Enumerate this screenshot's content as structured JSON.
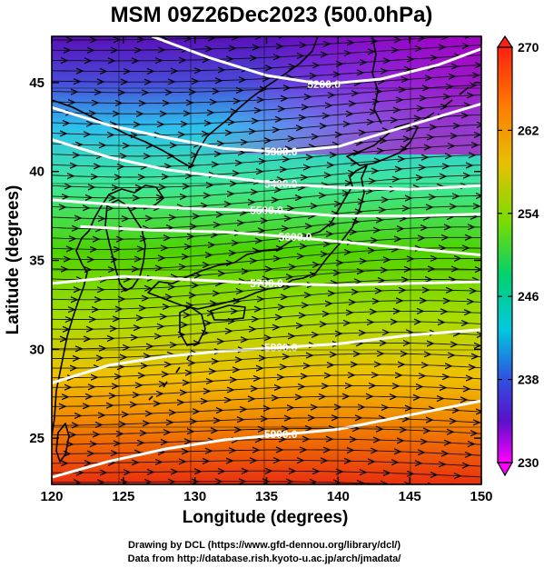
{
  "title": "MSM 09Z26Dec2023 (500.0hPa)",
  "xlabel": "Longitude (degrees)",
  "ylabel": "Latitude  (degrees)",
  "x_ticks": [
    "120",
    "125",
    "130",
    "135",
    "140",
    "145",
    "150"
  ],
  "y_ticks": [
    "25",
    "30",
    "35",
    "40",
    "45"
  ],
  "colorbar": {
    "ticks": [
      "270",
      "262",
      "254",
      "246",
      "238",
      "230"
    ],
    "min": 230,
    "max": 270
  },
  "contour_labels": [
    "5200.0",
    "5300.0",
    "5400.0",
    "5500.0",
    "5600.0",
    "5700.0",
    "5800.0",
    "5900.0"
  ],
  "credits": {
    "line1": "Drawing by DCL (https://www.gfd-dennou.org/library/dcl/)",
    "line2": "Data from http://database.rish.kyoto-u.ac.jp/arch/jmadata/"
  },
  "chart_data": {
    "type": "heatmap",
    "title": "MSM 09Z26Dec2023 (500.0hPa)",
    "xlabel": "Longitude (degrees)",
    "ylabel": "Latitude  (degrees)",
    "xlim": [
      120,
      150
    ],
    "ylim": [
      22.4,
      47.6
    ],
    "color_range": [
      230,
      270
    ],
    "grid": true,
    "contours": [
      {
        "label": "5200.0",
        "points": [
          [
            127,
            47.6
          ],
          [
            131,
            46.4
          ],
          [
            135,
            45.4
          ],
          [
            139,
            44.9
          ],
          [
            143,
            45.2
          ],
          [
            147,
            46.0
          ],
          [
            150,
            46.9
          ]
        ]
      },
      {
        "label": "5300.0",
        "points": [
          [
            120,
            43.6
          ],
          [
            124,
            42.6
          ],
          [
            128,
            41.9
          ],
          [
            132,
            41.3
          ],
          [
            136,
            41.1
          ],
          [
            140,
            41.4
          ],
          [
            145,
            42.6
          ],
          [
            150,
            43.8
          ]
        ]
      },
      {
        "label": "5400.0",
        "points": [
          [
            120,
            41.8
          ],
          [
            124,
            40.8
          ],
          [
            128,
            40.1
          ],
          [
            132,
            39.7
          ],
          [
            136,
            39.3
          ],
          [
            140,
            39.1
          ],
          [
            145,
            39.0
          ],
          [
            150,
            39.2
          ]
        ]
      },
      {
        "label": "5500.0",
        "points": [
          [
            120,
            38.4
          ],
          [
            125,
            38.1
          ],
          [
            130,
            37.9
          ],
          [
            135,
            37.8
          ],
          [
            140,
            37.5
          ],
          [
            145,
            37.5
          ],
          [
            150,
            37.6
          ]
        ]
      },
      {
        "label": "5600.0",
        "points": [
          [
            122,
            36.9
          ],
          [
            127,
            36.7
          ],
          [
            132,
            36.6
          ],
          [
            137,
            36.3
          ],
          [
            142,
            35.9
          ],
          [
            146,
            35.6
          ],
          [
            150,
            35.3
          ]
        ]
      },
      {
        "label": "5700.0",
        "points": [
          [
            120,
            33.7
          ],
          [
            125,
            34.1
          ],
          [
            130,
            33.9
          ],
          [
            135,
            33.7
          ],
          [
            140,
            33.6
          ],
          [
            145,
            33.7
          ],
          [
            150,
            33.8
          ]
        ]
      },
      {
        "label": "5800.0",
        "points": [
          [
            120,
            28.1
          ],
          [
            124,
            29.1
          ],
          [
            128,
            29.6
          ],
          [
            132,
            29.9
          ],
          [
            136,
            30.1
          ],
          [
            140,
            30.3
          ],
          [
            145,
            30.8
          ],
          [
            150,
            31.1
          ]
        ]
      },
      {
        "label": "5900.0",
        "points": [
          [
            120,
            22.8
          ],
          [
            124,
            23.7
          ],
          [
            128,
            24.4
          ],
          [
            132,
            24.9
          ],
          [
            136,
            25.2
          ],
          [
            140,
            25.5
          ],
          [
            145,
            26.3
          ],
          [
            150,
            27.1
          ]
        ]
      }
    ]
  }
}
